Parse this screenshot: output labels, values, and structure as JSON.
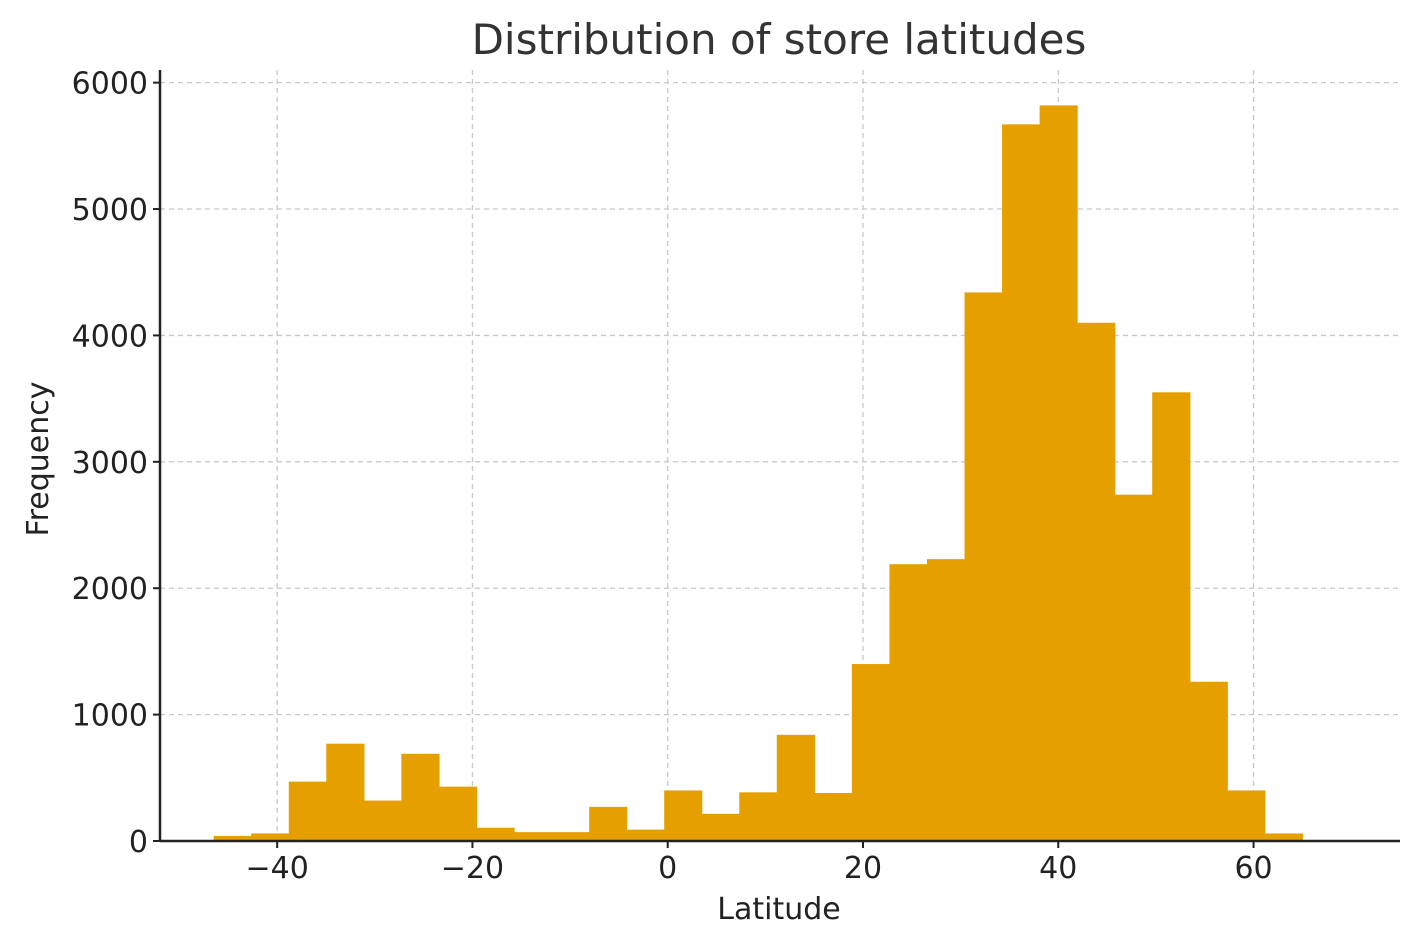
{
  "chart_data": {
    "type": "bar",
    "subtype": "histogram",
    "title": "Distribution of store latitudes",
    "xlabel": "Latitude",
    "ylabel": "Frequency",
    "xlim": [
      -52,
      75
    ],
    "ylim": [
      0,
      6100
    ],
    "xticks": [
      -40,
      -20,
      0,
      20,
      40,
      60
    ],
    "xtick_labels": [
      "−40",
      "−20",
      "0",
      "20",
      "40",
      "60"
    ],
    "yticks": [
      0,
      1000,
      2000,
      3000,
      4000,
      5000,
      6000
    ],
    "ytick_labels": [
      "0",
      "1000",
      "2000",
      "3000",
      "4000",
      "5000",
      "6000"
    ],
    "grid": true,
    "color": "#E5A000",
    "bin_edges": [
      -46.5,
      -42.66,
      -38.81,
      -34.97,
      -31.12,
      -27.28,
      -23.43,
      -19.59,
      -15.74,
      -11.9,
      -8.05,
      -4.21,
      -0.36,
      3.48,
      7.33,
      11.17,
      15.02,
      18.86,
      22.71,
      26.55,
      30.4,
      34.24,
      38.09,
      41.93,
      45.78,
      49.62,
      53.47,
      57.31,
      61.16,
      65.0
    ],
    "values": [
      40,
      60,
      470,
      770,
      320,
      690,
      430,
      105,
      70,
      70,
      270,
      90,
      400,
      215,
      385,
      840,
      380,
      1400,
      2190,
      2230,
      4340,
      5670,
      5820,
      4100,
      2740,
      3550,
      1260,
      400,
      60
    ]
  }
}
